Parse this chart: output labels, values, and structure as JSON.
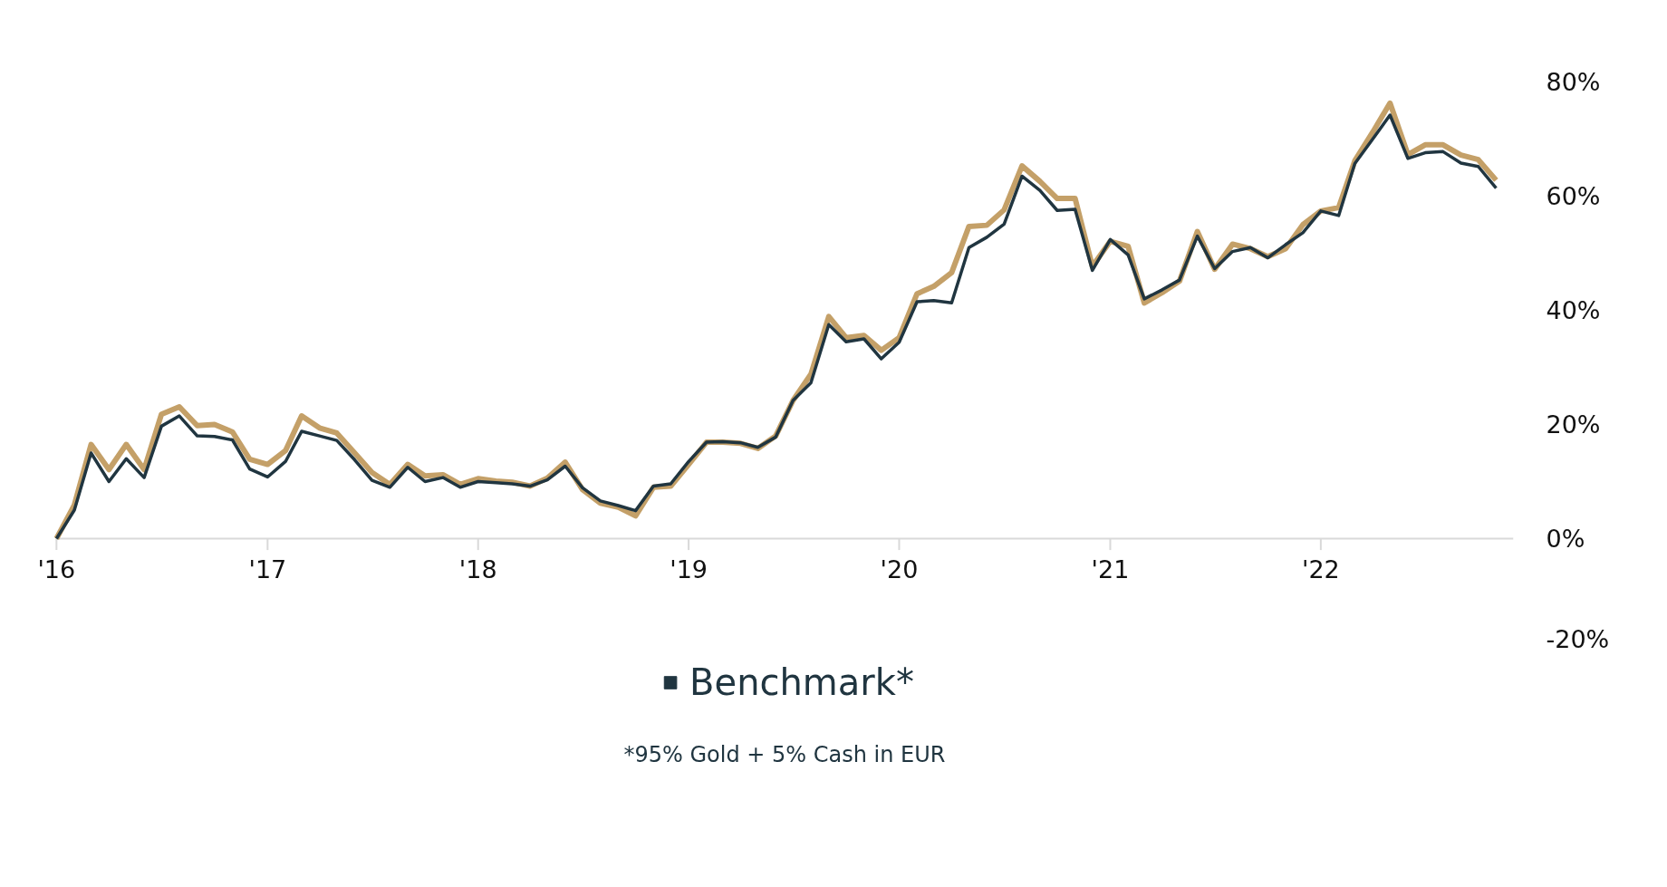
{
  "chart_data": {
    "type": "line",
    "x": [
      "2016-01",
      "2016-02",
      "2016-03",
      "2016-04",
      "2016-05",
      "2016-06",
      "2016-07",
      "2016-08",
      "2016-09",
      "2016-10",
      "2016-11",
      "2016-12",
      "2017-01",
      "2017-02",
      "2017-03",
      "2017-04",
      "2017-05",
      "2017-06",
      "2017-07",
      "2017-08",
      "2017-09",
      "2017-10",
      "2017-11",
      "2017-12",
      "2018-01",
      "2018-02",
      "2018-03",
      "2018-04",
      "2018-05",
      "2018-06",
      "2018-07",
      "2018-08",
      "2018-09",
      "2018-10",
      "2018-11",
      "2018-12",
      "2019-01",
      "2019-02",
      "2019-03",
      "2019-04",
      "2019-05",
      "2019-06",
      "2019-07",
      "2019-08",
      "2019-09",
      "2019-10",
      "2019-11",
      "2019-12",
      "2020-01",
      "2020-02",
      "2020-03",
      "2020-04",
      "2020-05",
      "2020-06",
      "2020-07",
      "2020-08",
      "2020-09",
      "2020-10",
      "2020-11",
      "2020-12",
      "2021-01",
      "2021-02",
      "2021-03",
      "2021-04",
      "2021-05",
      "2021-06",
      "2021-07",
      "2021-08",
      "2021-09",
      "2021-10",
      "2021-11",
      "2021-12",
      "2022-01",
      "2022-02",
      "2022-03",
      "2022-04",
      "2022-05",
      "2022-06",
      "2022-07",
      "2022-08",
      "2022-09",
      "2022-10",
      "2022-11"
    ],
    "series": [
      {
        "color": "#c4a068",
        "values": [
          0,
          5.9,
          16.5,
          12.1,
          16.5,
          12.1,
          21.8,
          23.1,
          19.8,
          20,
          18.7,
          13.9,
          13,
          15.4,
          21.5,
          19.4,
          18.5,
          15,
          11.6,
          9.5,
          13,
          11,
          11.2,
          9.5,
          10.5,
          10.1,
          9.9,
          9.2,
          10.6,
          13.4,
          8.6,
          6.2,
          5.5,
          4,
          9,
          9.2,
          13,
          16.9,
          16.9,
          16.7,
          15.8,
          18,
          24.2,
          28.8,
          38.9,
          35.2,
          35.6,
          33,
          35.2,
          42.9,
          44.2,
          46.6,
          54.7,
          54.9,
          57.6,
          65.3,
          62.6,
          59.6,
          59.6,
          47.7,
          52.1,
          51.2,
          41.3,
          43.1,
          45.1,
          53.8,
          47.2,
          51.6,
          50.8,
          49.4,
          50.8,
          55,
          57.4,
          58,
          66.2,
          71.2,
          76.3,
          67.3,
          69,
          69,
          67.2,
          66.4,
          62.8
        ]
      },
      {
        "name": "Benchmark*",
        "color": "#203540",
        "values": [
          0,
          5,
          15,
          10,
          14,
          10.7,
          19.7,
          21.5,
          18,
          17.9,
          17.3,
          12.2,
          10.8,
          13.5,
          18.8,
          18,
          17.2,
          13.8,
          10.2,
          9,
          12.5,
          10,
          10.7,
          9,
          10,
          9.8,
          9.6,
          9.2,
          10.3,
          12.7,
          8.9,
          6.6,
          5.8,
          4.9,
          9.2,
          9.6,
          13.5,
          16.9,
          17,
          16.8,
          16,
          17.8,
          24.2,
          27.3,
          37.5,
          34.5,
          35,
          31.5,
          34.4,
          41.5,
          41.7,
          41.3,
          51,
          52.8,
          55.1,
          63.5,
          61,
          57.5,
          57.7,
          47,
          52.4,
          49.7,
          42,
          43.6,
          45.3,
          53,
          47.3,
          50.3,
          51,
          49.2,
          51.5,
          53.6,
          57.4,
          56.6,
          65.7,
          70,
          74.2,
          66.6,
          67.6,
          67.8,
          65.8,
          65.2,
          61.4
        ]
      }
    ],
    "xlim": [
      "2016-01",
      "2022-12"
    ],
    "xticks": [
      {
        "value": "2016-01",
        "label": "'16"
      },
      {
        "value": "2017-01",
        "label": "'17"
      },
      {
        "value": "2018-01",
        "label": "'18"
      },
      {
        "value": "2019-01",
        "label": "'19"
      },
      {
        "value": "2020-01",
        "label": "'20"
      },
      {
        "value": "2021-01",
        "label": "'21"
      },
      {
        "value": "2022-01",
        "label": "'22"
      }
    ],
    "ylim": [
      -20,
      80
    ],
    "yticks": [
      {
        "value": -20,
        "label": "-20%"
      },
      {
        "value": 0,
        "label": "0%"
      },
      {
        "value": 20,
        "label": "20%"
      },
      {
        "value": 40,
        "label": "40%"
      },
      {
        "value": 60,
        "label": "60%"
      },
      {
        "value": 80,
        "label": "80%"
      }
    ],
    "grid": false,
    "legend": "bottom",
    "annotations": [
      "*95% Gold + 5% Cash in EUR"
    ]
  }
}
